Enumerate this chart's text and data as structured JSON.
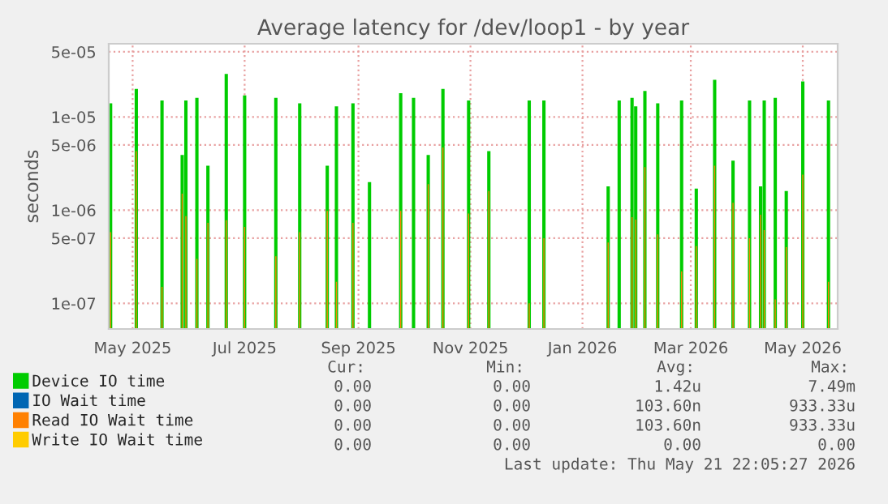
{
  "chart_data": {
    "type": "bar",
    "title": "Average latency for /dev/loop1 - by year",
    "ylabel": "seconds",
    "log": "y",
    "x": [
      "2025-04-19",
      "2025-05-03",
      "2025-05-17",
      "2025-05-28",
      "2025-05-30",
      "2025-06-05",
      "2025-06-11",
      "2025-06-21",
      "2025-07-01",
      "2025-07-18",
      "2025-07-31",
      "2025-08-15",
      "2025-08-20",
      "2025-08-29",
      "2025-09-07",
      "2025-09-24",
      "2025-10-01",
      "2025-10-09",
      "2025-10-17",
      "2025-10-31",
      "2025-11-11",
      "2025-12-03",
      "2025-12-11",
      "2026-01-15",
      "2026-01-21",
      "2026-01-28",
      "2026-01-30",
      "2026-02-04",
      "2026-02-11",
      "2026-02-24",
      "2026-03-04",
      "2026-03-14",
      "2026-03-24",
      "2026-04-02",
      "2026-04-08",
      "2026-04-10",
      "2026-04-16",
      "2026-04-22",
      "2026-05-01",
      "2026-05-15"
    ],
    "series": [
      {
        "name": "Device IO time",
        "color": "#00cc00",
        "values": [
          1.4e-05,
          2e-05,
          1.5e-05,
          3.9e-06,
          1.5e-05,
          1.6e-05,
          3e-06,
          2.9e-05,
          1.7e-05,
          1.6e-05,
          1.4e-05,
          3e-06,
          1.3e-05,
          1.4e-05,
          2e-06,
          1.8e-05,
          1.6e-05,
          3.9e-06,
          2e-05,
          1.5e-05,
          4.3e-06,
          1.5e-05,
          1.5e-05,
          1.8e-06,
          1.5e-05,
          1.6e-05,
          1.3e-05,
          1.9e-05,
          1.4e-05,
          1.5e-05,
          1.7e-06,
          2.5e-05,
          3.4e-06,
          1.5e-05,
          1.8e-06,
          1.5e-05,
          1.6e-05,
          1.6e-06,
          2.4e-05,
          1.5e-05
        ]
      },
      {
        "name": "IO Wait time",
        "color": "#0066b3",
        "values": [
          null,
          null,
          null,
          null,
          null,
          null,
          null,
          null,
          null,
          null,
          null,
          null,
          null,
          null,
          null,
          null,
          null,
          null,
          null,
          null,
          null,
          null,
          null,
          null,
          null,
          null,
          null,
          null,
          null,
          null,
          null,
          null,
          null,
          null,
          null,
          null,
          null,
          null,
          null,
          null
        ]
      },
      {
        "name": "Read IO Wait time",
        "color": "#ff8000",
        "values": [
          5.8e-07,
          4.3e-06,
          1.5e-07,
          1.5e-06,
          8.6e-07,
          3e-07,
          7.3e-07,
          7.8e-07,
          6.6e-07,
          3.2e-07,
          5.8e-07,
          9.8e-07,
          1.7e-07,
          7.3e-07,
          null,
          9.8e-07,
          null,
          1.9e-06,
          4.7e-06,
          9.2e-07,
          1.6e-06,
          1e-07,
          5e-07,
          4.5e-07,
          null,
          8.4e-07,
          7.9e-07,
          2.9e-06,
          5.5e-07,
          2.2e-07,
          4.1e-07,
          3e-06,
          1.2e-06,
          5e-07,
          8.9e-07,
          6.1e-07,
          1.1e-07,
          4e-07,
          2.4e-06,
          1.7e-07
        ]
      },
      {
        "name": "Write IO Wait time",
        "color": "#ffcc00",
        "values": [
          null,
          null,
          null,
          null,
          null,
          null,
          null,
          null,
          null,
          null,
          null,
          null,
          null,
          null,
          null,
          null,
          null,
          null,
          null,
          null,
          null,
          null,
          null,
          null,
          null,
          null,
          null,
          null,
          null,
          null,
          null,
          null,
          null,
          null,
          null,
          null,
          null,
          null,
          null,
          null
        ]
      }
    ],
    "xlim": [
      "2025-04-18",
      "2026-05-20"
    ],
    "xticks": [
      {
        "value": "2025-05-01",
        "label": "May 2025"
      },
      {
        "value": "2025-07-01",
        "label": "Jul 2025"
      },
      {
        "value": "2025-09-01",
        "label": "Sep 2025"
      },
      {
        "value": "2025-11-01",
        "label": "Nov 2025"
      },
      {
        "value": "2026-01-01",
        "label": "Jan 2026"
      },
      {
        "value": "2026-03-01",
        "label": "Mar 2026"
      },
      {
        "value": "2026-05-01",
        "label": "May 2026"
      }
    ],
    "ylim": [
      5.3e-08,
      6.1e-05
    ],
    "yticks": [
      1e-07,
      5e-07,
      1e-06,
      5e-06,
      1e-05,
      5e-05
    ],
    "grid": true,
    "legend": "bottom",
    "annotations": [
      "Cur:",
      "Min:",
      "Avg:",
      "Max:",
      "0.00",
      "0.00",
      "1.42u",
      "7.49m",
      "0.00",
      "0.00",
      "103.60n",
      "933.33u",
      "0.00",
      "0.00",
      "103.60n",
      "933.33u",
      "0.00",
      "0.00",
      "0.00",
      "0.00",
      "Last update: Thu May 21 22:05:27 2026"
    ]
  }
}
